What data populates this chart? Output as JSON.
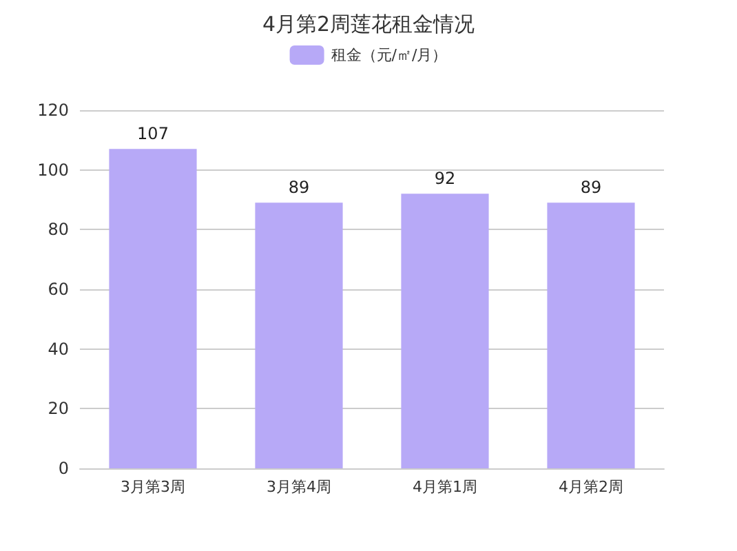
{
  "chart_data": {
    "type": "bar",
    "title": "4月第2周莲花租金情况",
    "categories": [
      "3月第3周",
      "3月第4周",
      "4月第1周",
      "4月第2周"
    ],
    "series": [
      {
        "name": "租金（元/㎡/月）",
        "color": "#b7a9f7",
        "values": [
          107,
          89,
          92,
          89
        ]
      }
    ],
    "ylim": [
      0,
      120
    ],
    "yticks": [
      0,
      20,
      40,
      60,
      80,
      100,
      120
    ],
    "grid": "y",
    "legend": "top",
    "data_labels": true
  }
}
